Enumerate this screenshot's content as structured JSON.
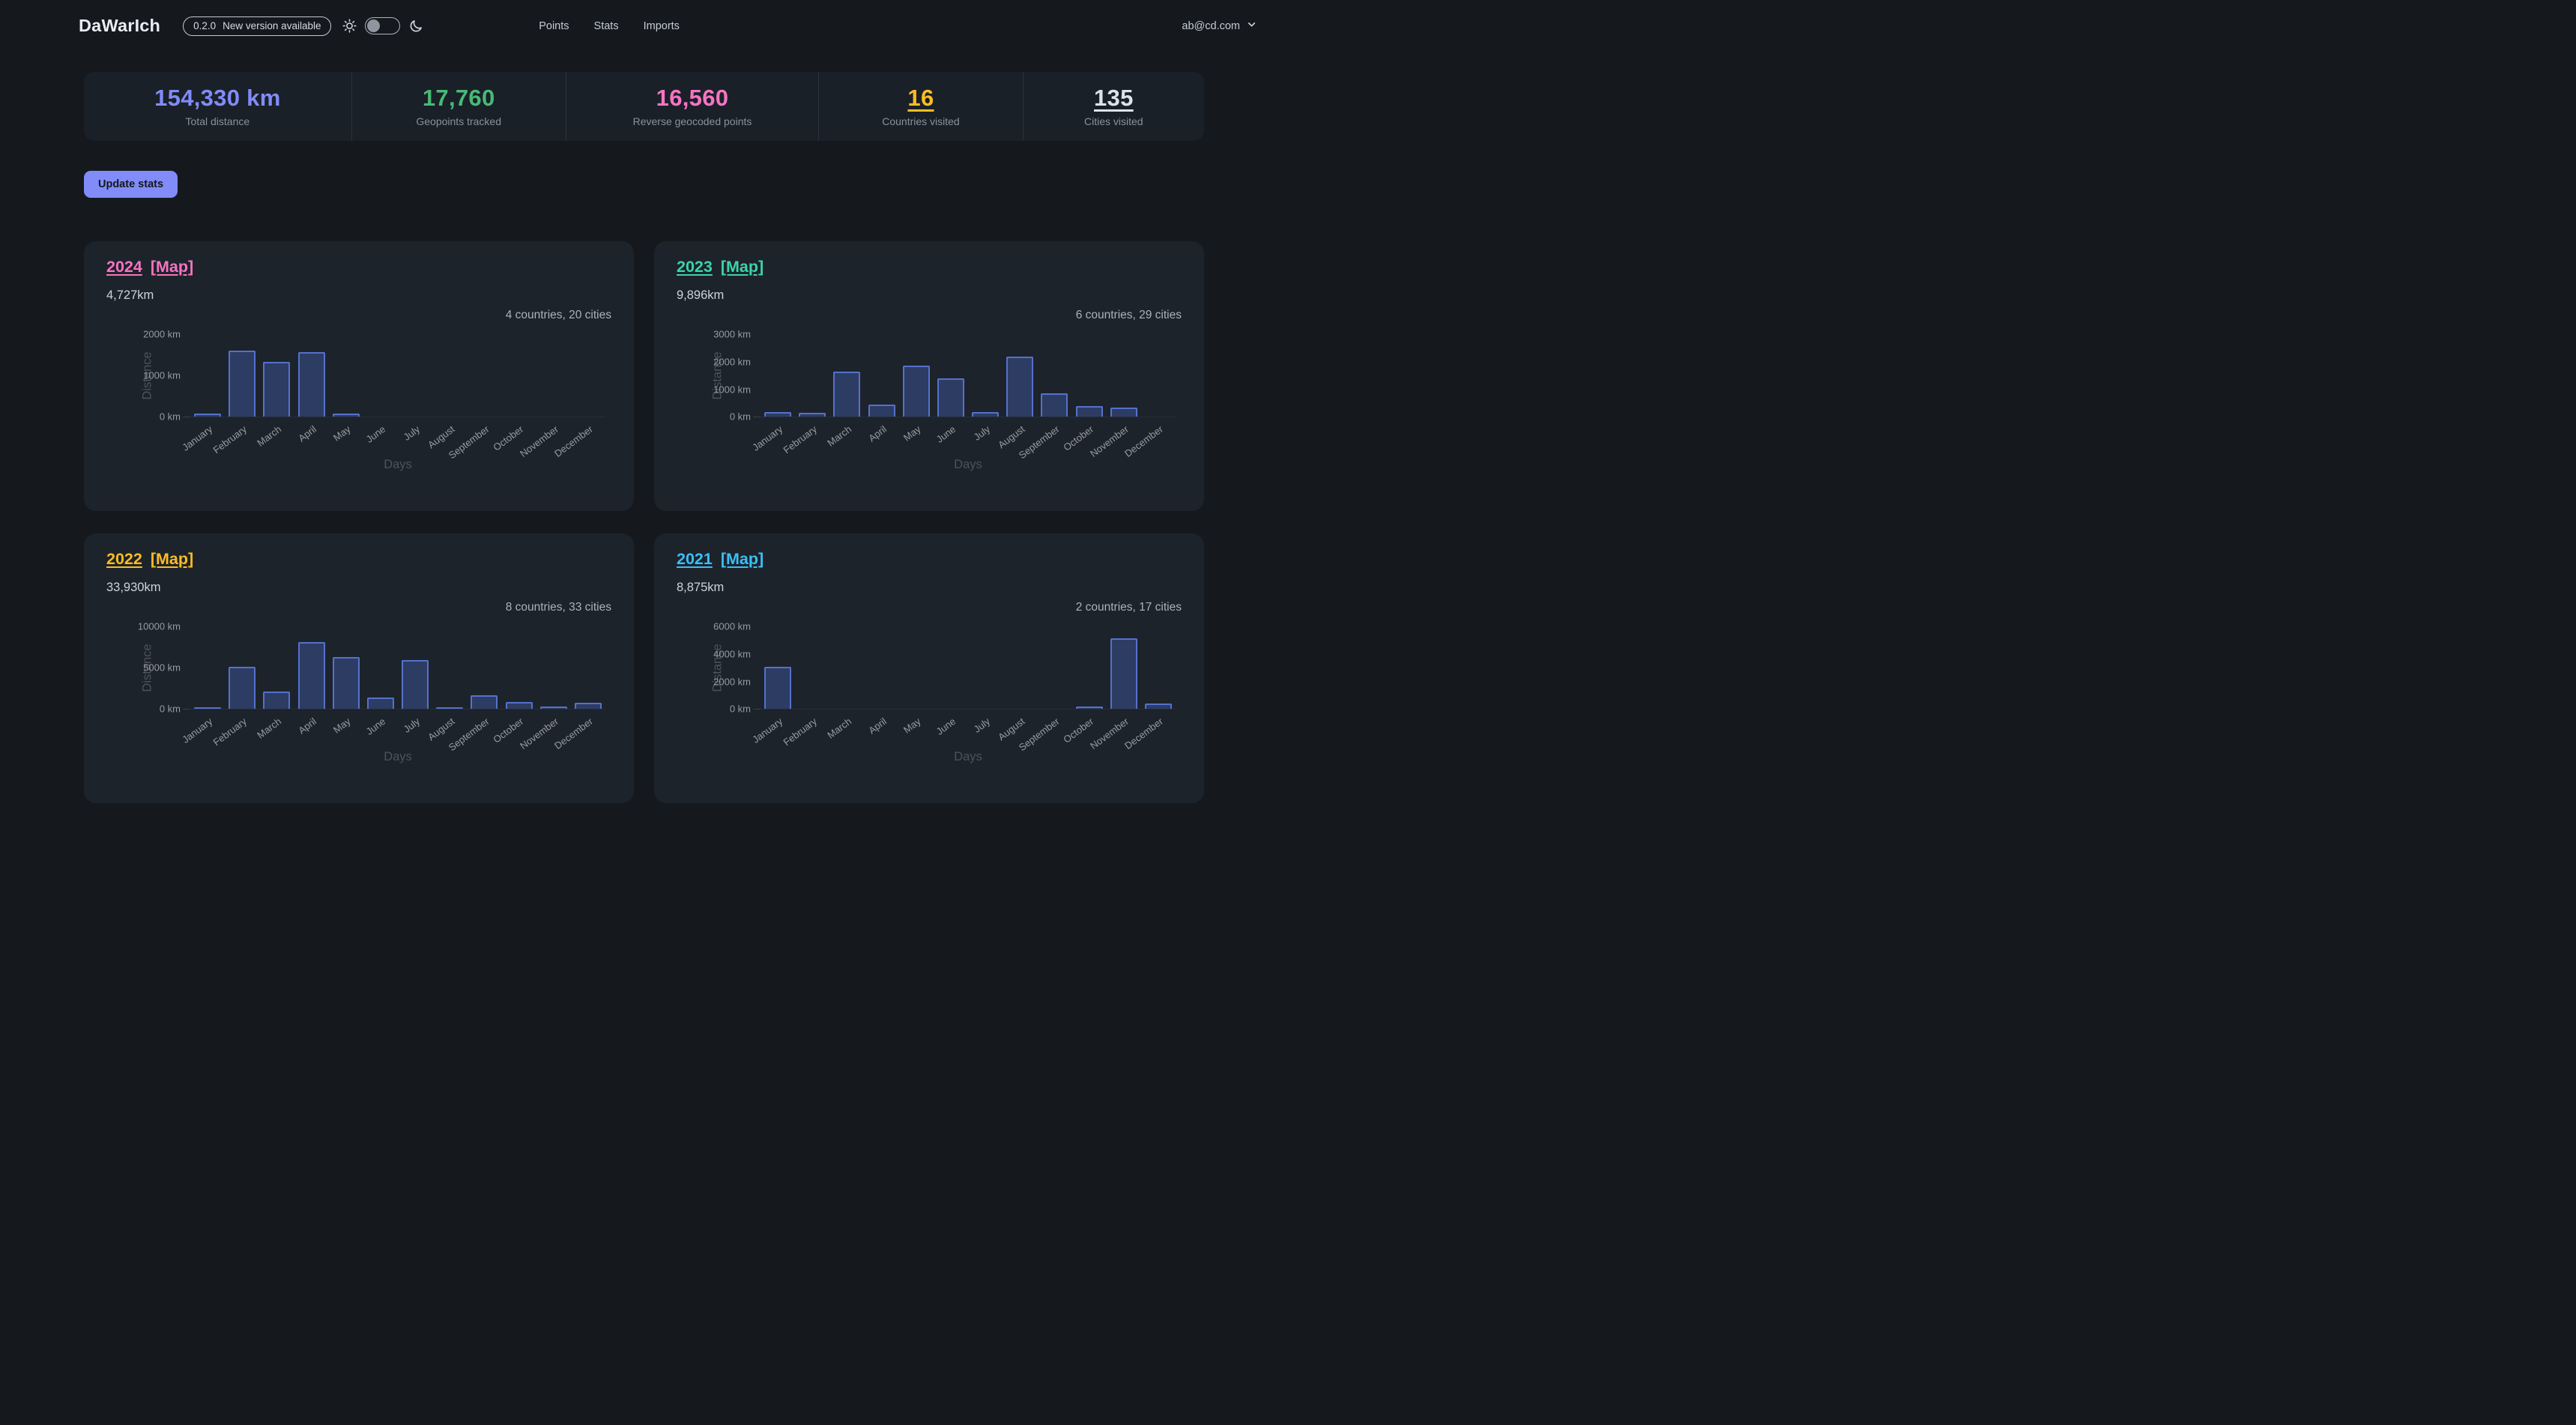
{
  "nav": {
    "logo": "DaWarIch",
    "version": "0.2.0",
    "version_message": "New version available",
    "links": [
      {
        "label": "Points"
      },
      {
        "label": "Stats"
      },
      {
        "label": "Imports"
      }
    ],
    "user_email": "ab@cd.com"
  },
  "stats": {
    "update_button": "Update stats",
    "items": [
      {
        "value": "154,330 km",
        "label": "Total distance",
        "color": "#818cf8",
        "underline": false
      },
      {
        "value": "17,760",
        "label": "Geopoints tracked",
        "color": "#48ba76",
        "underline": false
      },
      {
        "value": "16,560",
        "label": "Reverse geocoded points",
        "color": "#f674c2",
        "underline": false
      },
      {
        "value": "16",
        "label": "Countries visited",
        "color": "#fbbd23",
        "underline": true
      },
      {
        "value": "135",
        "label": "Cities visited",
        "color": "#dde3ea",
        "underline": true
      }
    ]
  },
  "chart_style": {
    "bar_fill": "#2d3c63",
    "bar_border": "#5471ce"
  },
  "chart_data": [
    {
      "type": "bar",
      "year": "2024",
      "map_label": "[Map]",
      "accent_color": "#f674c2",
      "distance_total": "4,727km",
      "summary": "4 countries, 20 cities",
      "xlabel": "Days",
      "ylabel": "Distance",
      "categories": [
        "January",
        "February",
        "March",
        "April",
        "May",
        "June",
        "July",
        "August",
        "September",
        "October",
        "November",
        "December"
      ],
      "values": [
        80,
        1600,
        1330,
        1560,
        80,
        0,
        0,
        0,
        0,
        0,
        0,
        0
      ],
      "ylim": [
        0,
        2000
      ],
      "y_ticks": [
        {
          "value": 0,
          "label": "0 km"
        },
        {
          "value": 1000,
          "label": "1000 km"
        },
        {
          "value": 2000,
          "label": "2000 km"
        }
      ]
    },
    {
      "type": "bar",
      "year": "2023",
      "map_label": "[Map]",
      "accent_color": "#3cd3ad",
      "distance_total": "9,896km",
      "summary": "6 countries, 29 cities",
      "xlabel": "Days",
      "ylabel": "Distance",
      "categories": [
        "January",
        "February",
        "March",
        "April",
        "May",
        "June",
        "July",
        "August",
        "September",
        "October",
        "November",
        "December"
      ],
      "values": [
        180,
        150,
        1650,
        450,
        1850,
        1400,
        170,
        2200,
        850,
        380,
        320,
        0
      ],
      "ylim": [
        0,
        3000
      ],
      "y_ticks": [
        {
          "value": 0,
          "label": "0 km"
        },
        {
          "value": 1000,
          "label": "1000 km"
        },
        {
          "value": 2000,
          "label": "2000 km"
        },
        {
          "value": 3000,
          "label": "3000 km"
        }
      ]
    },
    {
      "type": "bar",
      "year": "2022",
      "map_label": "[Map]",
      "accent_color": "#fbbd23",
      "distance_total": "33,930km",
      "summary": "8 countries, 33 cities",
      "xlabel": "Days",
      "ylabel": "Distance",
      "categories": [
        "January",
        "February",
        "March",
        "April",
        "May",
        "June",
        "July",
        "August",
        "September",
        "October",
        "November",
        "December"
      ],
      "values": [
        200,
        5100,
        2100,
        8100,
        6300,
        1400,
        5900,
        200,
        1700,
        800,
        250,
        750
      ],
      "ylim": [
        0,
        10000
      ],
      "y_ticks": [
        {
          "value": 0,
          "label": "0 km"
        },
        {
          "value": 5000,
          "label": "5000 km"
        },
        {
          "value": 10000,
          "label": "10000 km"
        }
      ]
    },
    {
      "type": "bar",
      "year": "2021",
      "map_label": "[Map]",
      "accent_color": "#3abff8",
      "distance_total": "8,875km",
      "summary": "2 countries, 17 cities",
      "xlabel": "Days",
      "ylabel": "Distance",
      "categories": [
        "January",
        "February",
        "March",
        "April",
        "May",
        "June",
        "July",
        "August",
        "September",
        "October",
        "November",
        "December"
      ],
      "values": [
        3050,
        0,
        0,
        0,
        0,
        0,
        0,
        0,
        0,
        150,
        5150,
        420
      ],
      "ylim": [
        0,
        6000
      ],
      "y_ticks": [
        {
          "value": 0,
          "label": "0 km"
        },
        {
          "value": 2000,
          "label": "2000 km"
        },
        {
          "value": 4000,
          "label": "4000 km"
        },
        {
          "value": 6000,
          "label": "6000 km"
        }
      ]
    }
  ]
}
